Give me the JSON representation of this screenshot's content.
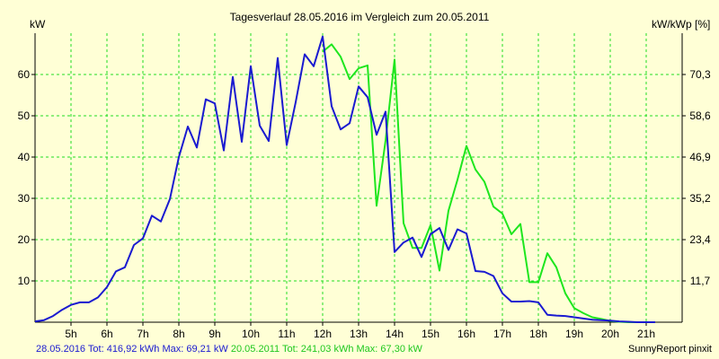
{
  "chart_data": {
    "type": "line",
    "title": "Tagesverlauf 28.05.2016 im Vergleich zum 20.05.2011",
    "ylabel_left": "kW",
    "ylabel_right": "kW/kWp [%]",
    "x_ticks": [
      "5h",
      "6h",
      "7h",
      "8h",
      "9h",
      "10h",
      "11h",
      "12h",
      "13h",
      "14h",
      "15h",
      "16h",
      "17h",
      "18h",
      "19h",
      "20h",
      "21h"
    ],
    "y_ticks_left": [
      "10",
      "20",
      "30",
      "40",
      "50",
      "60"
    ],
    "y_ticks_right": [
      "11,7",
      "23,4",
      "35,2",
      "46,9",
      "58,6",
      "70,3"
    ],
    "xlim": [
      4.0,
      22.0
    ],
    "ylim": [
      0,
      70
    ],
    "grid": true,
    "series": [
      {
        "name": "28.05.2016",
        "color": "#1a1ad0",
        "x": [
          4.0,
          4.25,
          4.5,
          4.75,
          5.0,
          5.25,
          5.5,
          5.75,
          6.0,
          6.25,
          6.5,
          6.75,
          7.0,
          7.25,
          7.5,
          7.75,
          8.0,
          8.25,
          8.5,
          8.75,
          9.0,
          9.25,
          9.5,
          9.75,
          10.0,
          10.25,
          10.5,
          10.75,
          11.0,
          11.25,
          11.5,
          11.75,
          12.0,
          12.25,
          12.5,
          12.75,
          13.0,
          13.25,
          13.5,
          13.75,
          14.0,
          14.25,
          14.5,
          14.75,
          15.0,
          15.25,
          15.5,
          15.75,
          16.0,
          16.25,
          16.5,
          16.75,
          17.0,
          17.25,
          17.5,
          17.75,
          18.0,
          18.25,
          18.5,
          18.75,
          19.0,
          19.25,
          19.5,
          19.75,
          20.0,
          20.25,
          20.5,
          20.75,
          21.0,
          21.25
        ],
        "values": [
          0.2,
          0.5,
          1.5,
          3.0,
          4.2,
          4.8,
          4.8,
          6.0,
          8.5,
          12.3,
          13.3,
          18.7,
          20.3,
          25.8,
          24.4,
          29.8,
          40.0,
          47.4,
          42.3,
          54.0,
          53.0,
          41.6,
          59.4,
          43.7,
          62.0,
          47.6,
          43.9,
          64.0,
          42.9,
          53.3,
          64.9,
          62.0,
          69.2,
          52.3,
          46.7,
          48.2,
          57.1,
          54.5,
          45.4,
          51.0,
          17.0,
          19.3,
          20.5,
          15.8,
          21.3,
          22.8,
          17.5,
          22.5,
          21.5,
          12.4,
          12.2,
          11.2,
          7.0,
          5.0,
          5.0,
          5.1,
          4.8,
          1.8,
          1.6,
          1.5,
          1.2,
          0.9,
          0.6,
          0.5,
          0.4,
          0.2,
          0.1,
          0.0,
          0.0,
          0.0
        ]
      },
      {
        "name": "20.05.2011",
        "color": "#1ee61e",
        "x": [
          12.0,
          12.25,
          12.5,
          12.75,
          13.0,
          13.25,
          13.5,
          13.75,
          14.0,
          14.25,
          14.5,
          14.75,
          15.0,
          15.25,
          15.5,
          15.75,
          16.0,
          16.25,
          16.5,
          16.75,
          17.0,
          17.25,
          17.5,
          17.75,
          18.0,
          18.25,
          18.5,
          18.75,
          19.0,
          19.25,
          19.5,
          19.75,
          20.0,
          20.25,
          20.5,
          20.75,
          21.0,
          21.25
        ],
        "values": [
          65.5,
          67.3,
          64.3,
          58.9,
          61.5,
          62.2,
          28.2,
          44.0,
          63.6,
          24.0,
          18.0,
          18.0,
          23.5,
          12.5,
          27.0,
          34.5,
          42.7,
          37.0,
          34.0,
          28.0,
          26.3,
          21.3,
          23.8,
          9.7,
          9.7,
          16.7,
          13.3,
          7.0,
          3.4,
          2.2,
          1.2,
          0.8,
          0.3,
          0.1,
          0.0,
          0.0,
          0.0,
          0.0
        ]
      }
    ]
  },
  "footer": {
    "blue_text": "28.05.2016 Tot: 416,92 kWh Max: 69,21 kW",
    "green_text": "20.05.2011 Tot: 241,03 kWh Max: 67,30 kW",
    "brand": "SunnyReport pinxit"
  }
}
